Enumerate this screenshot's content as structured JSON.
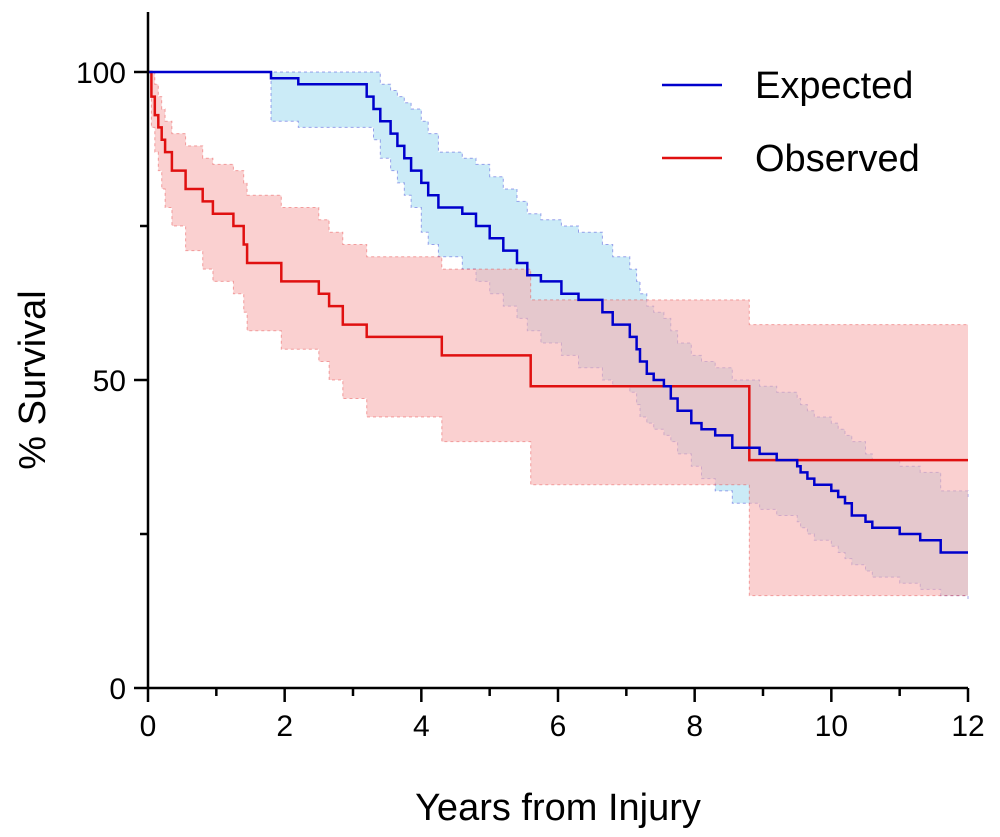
{
  "chart_data": {
    "type": "line",
    "title": "",
    "xlabel": "Years from Injury",
    "ylabel": "% Survival",
    "xlim": [
      0,
      12
    ],
    "ylim": [
      0,
      100
    ],
    "x_ticks": [
      0,
      2,
      4,
      6,
      8,
      10,
      12
    ],
    "x_minor_ticks": [
      1,
      3,
      5,
      7,
      9,
      11
    ],
    "y_ticks": [
      0,
      50,
      100
    ],
    "y_minor_ticks": [
      25,
      75
    ],
    "grid": false,
    "legend_position": "top-right",
    "series": [
      {
        "name": "Expected",
        "color": "#0000cc",
        "band_color": "#a8ddf2",
        "x": [
          0,
          1.8,
          2.2,
          3.2,
          3.3,
          3.4,
          3.55,
          3.65,
          3.75,
          3.85,
          4.0,
          4.1,
          4.25,
          4.35,
          4.6,
          4.8,
          5.0,
          5.2,
          5.4,
          5.55,
          5.75,
          6.05,
          6.3,
          6.65,
          6.8,
          7.05,
          7.15,
          7.2,
          7.3,
          7.4,
          7.55,
          7.65,
          7.75,
          7.95,
          8.1,
          8.3,
          8.55,
          8.95,
          9.2,
          9.5,
          9.55,
          9.65,
          9.75,
          10.0,
          10.1,
          10.2,
          10.3,
          10.5,
          10.6,
          11.0,
          11.3,
          11.6,
          12.0
        ],
        "y": [
          100,
          99,
          98,
          96,
          94,
          92,
          90,
          88,
          86,
          84,
          82,
          80,
          78,
          78,
          77,
          75,
          73,
          71,
          69,
          67,
          66,
          64,
          63,
          61,
          59,
          57,
          55,
          53,
          51,
          50,
          49,
          47,
          45,
          43,
          42,
          41,
          39,
          38,
          37,
          36,
          35,
          34,
          33,
          32,
          31,
          30,
          28,
          27,
          26,
          25,
          24,
          22,
          22
        ],
        "ci_lower": [
          100,
          92,
          91,
          91,
          89,
          86,
          84,
          82,
          80,
          78,
          74,
          72,
          70,
          70,
          68,
          66,
          64,
          62,
          60,
          58,
          56,
          54,
          52,
          50,
          49,
          48,
          46,
          44,
          43,
          42,
          41,
          40,
          38,
          36,
          34,
          32,
          30,
          29,
          28,
          27,
          26,
          25,
          24,
          23,
          22,
          21,
          20,
          19,
          18,
          17,
          16,
          15,
          14
        ],
        "ci_upper": [
          100,
          100,
          100,
          100,
          100,
          98,
          97,
          96,
          95,
          94,
          92,
          90,
          87,
          87,
          86,
          85,
          83,
          81,
          79,
          77,
          76,
          75,
          74,
          72,
          70,
          68,
          66,
          64,
          62,
          61,
          60,
          58,
          56,
          54,
          53,
          52,
          50,
          49,
          48,
          47,
          46,
          45,
          44,
          43,
          42,
          41,
          40,
          38,
          37,
          36,
          35,
          32,
          31
        ]
      },
      {
        "name": "Observed",
        "color": "#e01010",
        "band_color": "#f7b0b0",
        "x": [
          0,
          0.05,
          0.1,
          0.15,
          0.2,
          0.25,
          0.35,
          0.55,
          0.8,
          0.95,
          1.25,
          1.4,
          1.45,
          1.95,
          2.5,
          2.65,
          2.85,
          3.2,
          4.3,
          5.6,
          8.8,
          12.0
        ],
        "y": [
          100,
          96,
          93,
          91,
          89,
          87,
          84,
          81,
          79,
          77,
          75,
          72,
          69,
          66,
          64,
          62,
          59,
          57,
          54,
          49,
          37,
          37
        ],
        "ci_lower": [
          100,
          91,
          87,
          84,
          81,
          78,
          75,
          71,
          68,
          66,
          64,
          61,
          58,
          55,
          53,
          50,
          47,
          44,
          40,
          33,
          15,
          15
        ],
        "ci_upper": [
          100,
          100,
          98,
          96,
          94,
          92,
          90,
          88,
          86,
          85,
          84,
          82,
          80,
          78,
          76,
          74,
          72,
          70,
          68,
          63,
          59,
          59
        ]
      }
    ]
  }
}
